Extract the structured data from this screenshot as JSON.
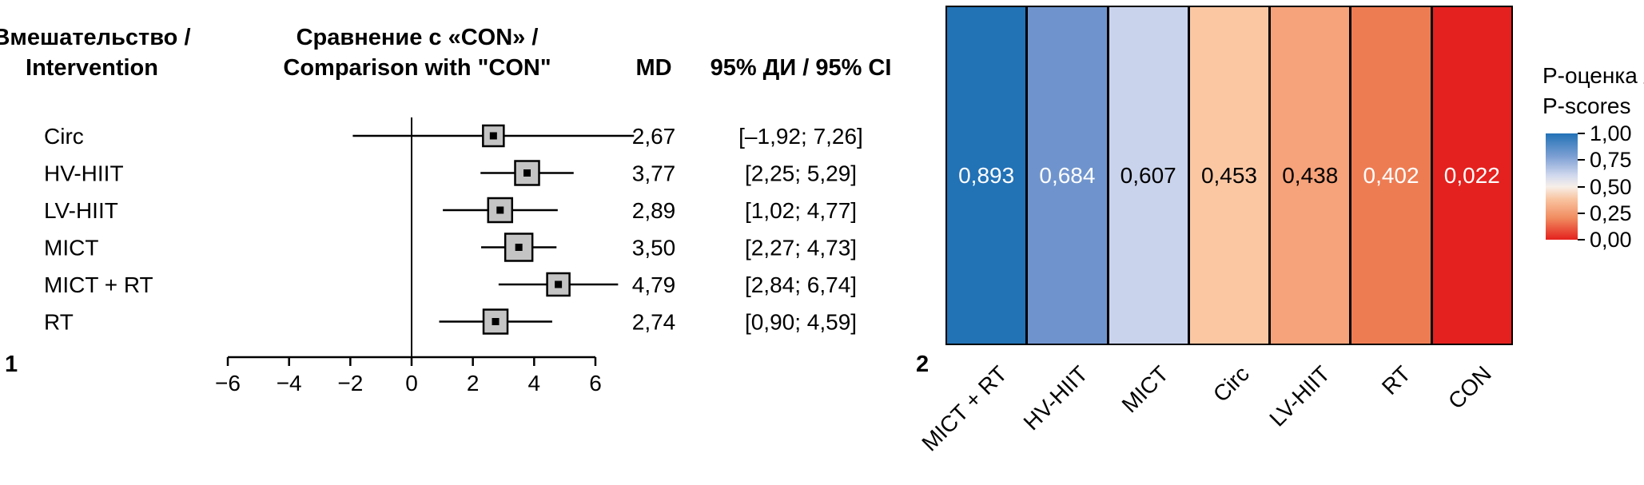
{
  "chart_data": [
    {
      "type": "forest",
      "panel_label": "1",
      "headers": {
        "col1_line1": "Вмешательство /",
        "col1_line2": "Intervention",
        "col2_line1": "Сравнение с «CON» /",
        "col2_line2": "Comparison with \"CON\"",
        "md": "MD",
        "ci": "95% ДИ / 95% CI"
      },
      "reference_value": 0,
      "xlim": [
        -6,
        7.4
      ],
      "xticks": [
        -6,
        -4,
        -2,
        0,
        2,
        4,
        6
      ],
      "xtick_labels": [
        "−6",
        "−4",
        "−2",
        "0",
        "2",
        "4",
        "6"
      ],
      "rows": [
        {
          "label": "Circ",
          "md": 2.67,
          "ci_low": -1.92,
          "ci_high": 7.26,
          "md_label": "2,67",
          "ci_label": "[–1,92; 7,26]",
          "box_size": 26
        },
        {
          "label": "HV-HIIT",
          "md": 3.77,
          "ci_low": 2.25,
          "ci_high": 5.29,
          "md_label": "3,77",
          "ci_label": "[2,25; 5,29]",
          "box_size": 30
        },
        {
          "label": "LV-HIIT",
          "md": 2.89,
          "ci_low": 1.02,
          "ci_high": 4.77,
          "md_label": "2,89",
          "ci_label": "[1,02; 4,77]",
          "box_size": 30
        },
        {
          "label": "MICT",
          "md": 3.5,
          "ci_low": 2.27,
          "ci_high": 4.73,
          "md_label": "3,50",
          "ci_label": "[2,27; 4,73]",
          "box_size": 34
        },
        {
          "label": "MICT + RT",
          "md": 4.79,
          "ci_low": 2.84,
          "ci_high": 6.74,
          "md_label": "4,79",
          "ci_label": "[2,84; 6,74]",
          "box_size": 28
        },
        {
          "label": "RT",
          "md": 2.74,
          "ci_low": 0.9,
          "ci_high": 4.59,
          "md_label": "2,74",
          "ci_label": "[0,90; 4,59]",
          "box_size": 30
        }
      ],
      "style": {
        "box_fill": "#c4c4c4",
        "line_color": "#000000"
      }
    },
    {
      "type": "heatmap",
      "panel_label": "2",
      "categories": [
        "MICT + RT",
        "HV-HIIT",
        "MICT",
        "Circ",
        "LV-HIIT",
        "RT",
        "CON"
      ],
      "values": [
        0.893,
        0.684,
        0.607,
        0.453,
        0.438,
        0.402,
        0.022
      ],
      "value_labels": [
        "0,893",
        "0,684",
        "0,607",
        "0,453",
        "0,438",
        "0,402",
        "0,022"
      ],
      "cell_colors": [
        "#2272b6",
        "#6f94cd",
        "#c9d3ec",
        "#fbc7a3",
        "#f6a27a",
        "#ee7c53",
        "#e4211e"
      ],
      "value_text_colors": [
        "#ffffff",
        "#ffffff",
        "#000000",
        "#000000",
        "#000000",
        "#ffffff",
        "#ffffff"
      ],
      "legend": {
        "title_line1": "P-оценка /",
        "title_line2": "P-scores",
        "tick_labels": [
          "1,00",
          "0,75",
          "0,50",
          "0,25",
          "0,00"
        ],
        "range": [
          0,
          1
        ],
        "gradient_stops": [
          "#2272b6 0%",
          "#7ea0d4 22%",
          "#d3daee 40%",
          "#f7efe9 50%",
          "#f9c3a0 62%",
          "#f08a5e 80%",
          "#e4211e 100%"
        ]
      }
    }
  ]
}
